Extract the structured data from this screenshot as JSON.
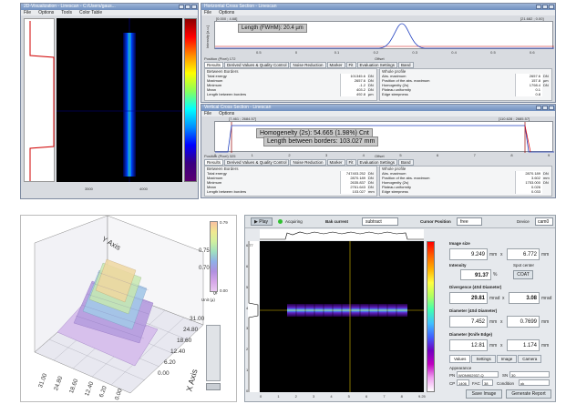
{
  "top_left": {
    "title": "2D-Visualization - Linescan - C:/Users/gaus...",
    "menu": [
      "File",
      "Options",
      "Tools",
      "Color Table"
    ],
    "x_ticks": [
      "3500",
      "4000"
    ],
    "colorbar_colors": [
      "#8a0000",
      "#ff0000",
      "#ff8a00",
      "#ffff00",
      "#8aff5a",
      "#00ffff",
      "#0090ff",
      "#0000ff",
      "#3a0080",
      "#5a0070"
    ]
  },
  "top_right_h": {
    "title": "Horizontal Cross Section - Linescan",
    "menu": [
      "File",
      "Options"
    ],
    "range_left": "[0.000 ; 4.68]",
    "range_right": "[21.682 ; 0.00]",
    "y_axis_label": "Intensity [a.u.]",
    "fwhm_label": "Length (FWHM): 20.4 µm",
    "x_ticks": [
      "0.5",
      "0",
      "0.1",
      "0.2",
      "0.3",
      "0.4",
      "0.5",
      "0.6"
    ],
    "position_label": "Position (Pixel)  172",
    "offset_label": "Offset",
    "tabs": [
      "Results",
      "Derived Values & Quality Control",
      "Noise Reduction",
      "Marker",
      "Fit",
      "Evaluation Settings",
      "Band"
    ],
    "left_hdr": "Between Borders",
    "right_hdr": "Whole profile",
    "left_rows": [
      {
        "label": "Total energy",
        "value": "101345.6",
        "unit": "DN"
      },
      {
        "label": "Maximum",
        "value": "2657.6",
        "unit": "DN"
      },
      {
        "label": "Minimum",
        "value": "-1.2",
        "unit": "DN"
      },
      {
        "label": "Mean",
        "value": "403.2",
        "unit": "DN"
      },
      {
        "label": "Length between borders",
        "value": "492.8",
        "unit": "µm"
      }
    ],
    "right_rows": [
      {
        "label": "Abs. maximum",
        "value": "2657.6",
        "unit": "DN"
      },
      {
        "label": "Position of the abs. maximum",
        "value": "157.8",
        "unit": "µm"
      },
      {
        "label": "Homogenity (2s)",
        "value": "1798.4",
        "unit": "DN"
      },
      {
        "label": "Plateau uniformity",
        "value": "0.1",
        "unit": ""
      },
      {
        "label": "Edge steepness",
        "value": "0.8",
        "unit": ""
      }
    ]
  },
  "bottom_right_v": {
    "title": "Vertical Cross Section - Linescan",
    "menu": [
      "File",
      "Options"
    ],
    "range_left": "[7.461 ; 2684.57]",
    "range_right": "[110.628 ; 2685.57]",
    "x_ticks": [
      "0",
      "1",
      "2",
      "3",
      "4",
      "5",
      "6",
      "7",
      "8",
      "9"
    ],
    "homogeneity_label": "Homogenelty (2s): 54.665 (1.98%) Cnt",
    "length_label": "Length between borders: 103.027 mm",
    "position_label": "Position (Pixel)  325",
    "offset_label": "Offset",
    "tabs": [
      "Results",
      "Derived Values & Quality Control",
      "Noise Reduction",
      "Marker",
      "Fit",
      "Evaluation Settings",
      "Band"
    ],
    "left_hdr": "Between Borders",
    "right_hdr": "Whole profile",
    "left_rows": [
      {
        "label": "Total energy",
        "value": "747403.252",
        "unit": "DN"
      },
      {
        "label": "Maximum",
        "value": "2870.189",
        "unit": "DN"
      },
      {
        "label": "Minimum",
        "value": "2635.837",
        "unit": "DN"
      },
      {
        "label": "Mean",
        "value": "2761.643",
        "unit": "DN"
      },
      {
        "label": "Length between borders",
        "value": "103.027",
        "unit": "mm"
      }
    ],
    "right_rows": [
      {
        "label": "Abs. maximum",
        "value": "2870.189",
        "unit": "DN"
      },
      {
        "label": "Position of the abs. maximum",
        "value": "3.602",
        "unit": "mm"
      },
      {
        "label": "Homogenity (2s)",
        "value": "1753.000",
        "unit": "DN"
      },
      {
        "label": "Plateau uniformity",
        "value": "0.026",
        "unit": ""
      },
      {
        "label": "Edge steepness",
        "value": "0.033",
        "unit": ""
      }
    ]
  },
  "plot3d": {
    "y_axis_label": "Y Axis",
    "x_axis_label": "X Axis",
    "z_axis_label": "Z Axis",
    "x_ticks": [
      "0.00",
      "6.20",
      "12.40",
      "18.60",
      "24.80",
      "31.00"
    ],
    "y_ticks": [
      "31.00",
      "24.80",
      "18.60",
      "12.40",
      "6.20",
      "0.00"
    ],
    "z_ticks": [
      "0.70",
      "0.75"
    ],
    "colorbar_top": "0.79",
    "colorbar_bottom": "0.00",
    "unit_label": "Unit (µ)",
    "colorbar_colors": [
      "#e8c8f0",
      "#d5a5e8",
      "#b090e0",
      "#8fb0e8",
      "#a0e0c0",
      "#d0f0a0",
      "#f0e890",
      "#f8c0a0"
    ]
  },
  "app": {
    "play_label": "Play",
    "acquiring_label": "Acquiring",
    "bg_label": "Bak current",
    "bg_value": "subtract",
    "cursor_label": "Cursor Position",
    "cursor_value": "free",
    "device_label": "Device",
    "device_value": "cam0",
    "image_size_label": "Image size",
    "width_value": "9.249",
    "width_unit": "mm",
    "height_value": "6.772",
    "height_unit": "mm",
    "intensity_label": "Intensity",
    "intensity_value": "91.37",
    "intensity_unit": "%",
    "spot_center_label": "Spot center",
    "spot_center_value": "COAT",
    "divergence_label": "Divergence (4Sd Diameter)",
    "div1_value": "29.81",
    "div1_unit": "mrad",
    "div2_value": "3.08",
    "div2_unit": "mrad",
    "diam4s_label": "Diameter (4Sd Diameter)",
    "diam1_value": "7.452",
    "diam1_unit": "mm",
    "diam2_value": "0.7699",
    "diam2_unit": "mm",
    "knife_label": "Diameter (Knife Edge)",
    "knife1_value": "12.81",
    "knife1_unit": "mm",
    "knife2_value": "1.174",
    "knife2_unit": "mm",
    "x_sep": "x",
    "tabs": [
      "Values",
      "Settings",
      "Image",
      "Camera"
    ],
    "appearance_label": "Appearance",
    "pn_label": "PN",
    "pn_value": "WON902937-Q",
    "sn_label": "SN",
    "sn_value": "30",
    "cp_label": "CP",
    "cp_value": "1406",
    "fac_label": "FAC",
    "fac_value": "38",
    "cond_label": "Condition",
    "cond_value": "ok",
    "save_label": "Save Image",
    "report_label": "Generate Report",
    "x_ticks": [
      "0",
      "1",
      "2",
      "3",
      "4",
      "5",
      "6",
      "7",
      "8",
      "9.25"
    ],
    "y_ticks": [
      "6.77",
      "6",
      "5",
      "4",
      "3",
      "2",
      "1",
      "0"
    ],
    "colorbar_colors": [
      "#ff0000",
      "#ff6000",
      "#ffb000",
      "#ffff40",
      "#b0ff60",
      "#40ffb0",
      "#40c0ff",
      "#4060ff",
      "#7000c0",
      "#c000c0",
      "#f0a0f0",
      "#ffffff"
    ]
  }
}
